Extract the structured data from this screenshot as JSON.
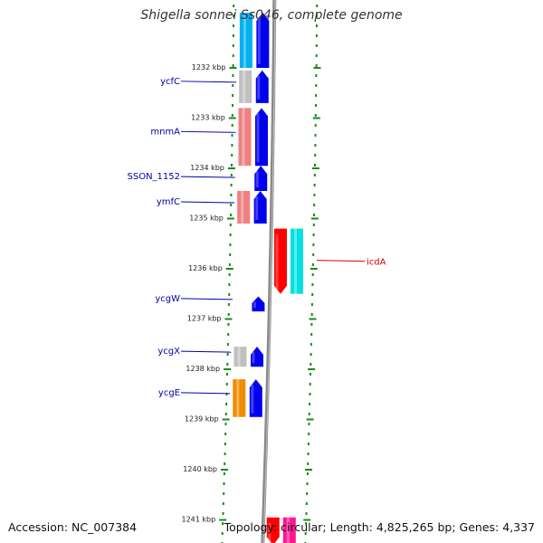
{
  "title": "Shigella sonnei Ss046, complete genome",
  "accession": "Accession: NC_007384",
  "topology": "Topology: circular; Length: 4,825,265 bp; Genes: 4,337",
  "colors": {
    "forward_cds": "#0000ee",
    "label_blue": "#0000aa",
    "label_red": "#dd0000",
    "ticks": "#1a8a1a",
    "backbone": "#888888"
  },
  "scale": {
    "unit": "kbp",
    "ticks": [
      {
        "value": 1232,
        "label": "1232 kbp"
      },
      {
        "value": 1233,
        "label": "1233 kbp"
      },
      {
        "value": 1234,
        "label": "1234 kbp"
      },
      {
        "value": 1235,
        "label": "1235 kbp"
      },
      {
        "value": 1236,
        "label": "1236 kbp"
      },
      {
        "value": 1237,
        "label": "1237 kbp"
      },
      {
        "value": 1238,
        "label": "1238 kbp"
      },
      {
        "value": 1239,
        "label": "1239 kbp"
      },
      {
        "value": 1240,
        "label": "1240 kbp"
      },
      {
        "value": 1241,
        "label": "1241 kbp"
      }
    ]
  },
  "genes": [
    {
      "label": "",
      "start": 1230.9,
      "end": 1232.0,
      "strand": "+",
      "color": "#0000ee",
      "cog_color": "#00b0f0"
    },
    {
      "label": "ycfC",
      "start": 1232.05,
      "end": 1232.7,
      "strand": "+",
      "color": "#0000ee",
      "cog_color": "#c0c0c0",
      "label_color": "#0000aa"
    },
    {
      "label": "mnmA",
      "start": 1232.8,
      "end": 1233.95,
      "strand": "+",
      "color": "#0000ee",
      "cog_color": "#f08080",
      "label_color": "#0000aa"
    },
    {
      "label": "SSON_1152",
      "start": 1233.95,
      "end": 1234.45,
      "strand": "+",
      "color": "#0000ee",
      "cog_color": "",
      "label_color": "#0000aa"
    },
    {
      "label": "ymfC",
      "start": 1234.45,
      "end": 1235.1,
      "strand": "+",
      "color": "#0000ee",
      "cog_color": "#f08080",
      "label_color": "#0000aa"
    },
    {
      "label": "icdA",
      "start": 1235.2,
      "end": 1236.5,
      "strand": "-",
      "color": "#ff0000",
      "cog_color": "#00e0e0",
      "label_color": "#dd0000"
    },
    {
      "label": "ycgW",
      "start": 1236.55,
      "end": 1236.85,
      "strand": "+",
      "color": "#0000ee",
      "cog_color": "",
      "label_color": "#0000aa"
    },
    {
      "label": "ycgX",
      "start": 1237.55,
      "end": 1237.95,
      "strand": "+",
      "color": "#0000ee",
      "cog_color": "#c0c0c0",
      "label_color": "#0000aa"
    },
    {
      "label": "ycgE",
      "start": 1238.2,
      "end": 1238.95,
      "strand": "+",
      "color": "#0000ee",
      "cog_color": "#f08c00",
      "label_color": "#0000aa"
    },
    {
      "label": "",
      "start": 1240.95,
      "end": 1241.5,
      "strand": "-",
      "color": "#ff0000",
      "cog_color": "#ff1493"
    }
  ]
}
